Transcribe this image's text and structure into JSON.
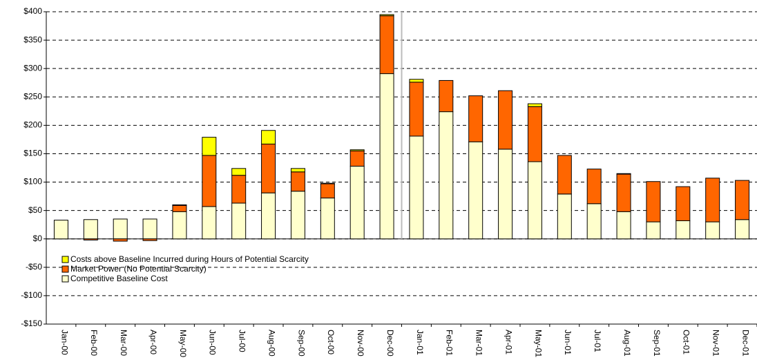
{
  "chart_data": {
    "type": "stacked_bar",
    "categories": [
      "Jan-00",
      "Feb-00",
      "Mar-00",
      "Apr-00",
      "May-00",
      "Jun-00",
      "Jul-00",
      "Aug-00",
      "Sep-00",
      "Oct-00",
      "Nov-00",
      "Dec-00",
      "Jan-01",
      "Feb-01",
      "Mar-01",
      "Apr-01",
      "May-01",
      "Jun-01",
      "Jul-01",
      "Aug-01",
      "Sep-01",
      "Oct-01",
      "Nov-01",
      "Dec-01"
    ],
    "series": [
      {
        "name": "Competitive Baseline Cost",
        "color": "#ffffcc",
        "values": [
          33,
          34,
          35,
          35,
          48,
          57,
          63,
          81,
          84,
          72,
          128,
          291,
          181,
          224,
          171,
          158,
          136,
          79,
          62,
          48,
          30,
          32,
          30,
          34
        ]
      },
      {
        "name": "Market Power (No Potential Scarcity)",
        "color": "#ff6600",
        "values": [
          0,
          -2,
          -4,
          -3,
          11,
          90,
          49,
          86,
          34,
          25,
          27,
          102,
          95,
          55,
          81,
          103,
          97,
          68,
          61,
          66,
          71,
          60,
          77,
          69
        ]
      },
      {
        "name": "Costs above Baseline Incurred during Hours of Potential Scarcity",
        "color": "#ffff00",
        "values": [
          0,
          0,
          0,
          0,
          1,
          32,
          12,
          24,
          6,
          1,
          2,
          2,
          5,
          0,
          0,
          0,
          5,
          0,
          0,
          1,
          0,
          0,
          0,
          0
        ]
      }
    ],
    "ylim": [
      -150,
      400
    ],
    "yticks": [
      {
        "value": -150,
        "label": "-$150"
      },
      {
        "value": -100,
        "label": "-$100"
      },
      {
        "value": -50,
        "label": "-$50"
      },
      {
        "value": 0,
        "label": "$0"
      },
      {
        "value": 50,
        "label": "$50"
      },
      {
        "value": 100,
        "label": "$100"
      },
      {
        "value": 150,
        "label": "$150"
      },
      {
        "value": 200,
        "label": "$200"
      },
      {
        "value": 250,
        "label": "$250"
      },
      {
        "value": 300,
        "label": "$300"
      },
      {
        "value": 350,
        "label": "$350"
      },
      {
        "value": 400,
        "label": "$400"
      }
    ],
    "grid": true
  }
}
